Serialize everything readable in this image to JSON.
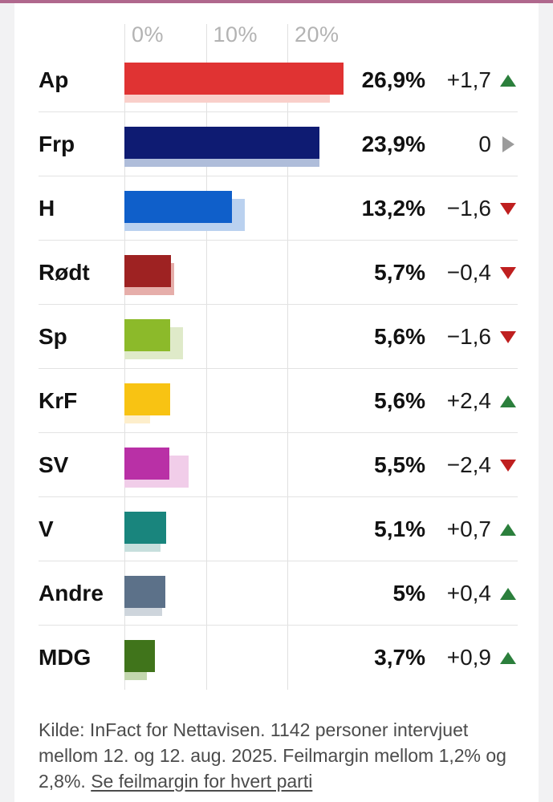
{
  "page": {
    "background_color": "#f2f2f3",
    "card_color": "#ffffff",
    "top_stripe_color": "#b0688d"
  },
  "colors": {
    "trend_up": "#2b7f3c",
    "trend_down": "#bf1f1f",
    "trend_flat": "#9b9b9b",
    "axis_text": "#b3b3b3",
    "gridline": "#e0e0e0",
    "separator": "#e3e3e3",
    "text": "#111111",
    "footer_text": "#4b4b4b"
  },
  "chart_data": {
    "type": "bar",
    "orientation": "horizontal",
    "unit": "%",
    "title": "",
    "axis": {
      "ticks": [
        {
          "label": "0%",
          "value": 0
        },
        {
          "label": "10%",
          "value": 10
        },
        {
          "label": "20%",
          "value": 20
        }
      ],
      "range": [
        0,
        28
      ],
      "grid": true
    },
    "rows": [
      {
        "party": "Ap",
        "value": 26.9,
        "value_label": "26,9%",
        "previous": 25.2,
        "change": 1.7,
        "change_label": "+1,7",
        "direction": "up",
        "color": "#e03333",
        "previous_color": "#f9cfca"
      },
      {
        "party": "Frp",
        "value": 23.9,
        "value_label": "23,9%",
        "previous": 23.9,
        "change": 0,
        "change_label": "0",
        "direction": "flat",
        "color": "#0e1b72",
        "previous_color": "#afbdda"
      },
      {
        "party": "H",
        "value": 13.2,
        "value_label": "13,2%",
        "previous": 14.8,
        "change": -1.6,
        "change_label": "−1,6",
        "direction": "down",
        "color": "#0f5fca",
        "previous_color": "#bad1ef"
      },
      {
        "party": "Rødt",
        "value": 5.7,
        "value_label": "5,7%",
        "previous": 6.1,
        "change": -0.4,
        "change_label": "−0,4",
        "direction": "down",
        "color": "#9e2222",
        "previous_color": "#e6aeaa"
      },
      {
        "party": "Sp",
        "value": 5.6,
        "value_label": "5,6%",
        "previous": 7.2,
        "change": -1.6,
        "change_label": "−1,6",
        "direction": "down",
        "color": "#8cba2a",
        "previous_color": "#dfeac9"
      },
      {
        "party": "KrF",
        "value": 5.6,
        "value_label": "5,6%",
        "previous": 3.2,
        "change": 2.4,
        "change_label": "+2,4",
        "direction": "up",
        "color": "#f8c313",
        "previous_color": "#fdeecb"
      },
      {
        "party": "SV",
        "value": 5.5,
        "value_label": "5,5%",
        "previous": 7.9,
        "change": -2.4,
        "change_label": "−2,4",
        "direction": "down",
        "color": "#b930a6",
        "previous_color": "#f1cde9"
      },
      {
        "party": "V",
        "value": 5.1,
        "value_label": "5,1%",
        "previous": 4.4,
        "change": 0.7,
        "change_label": "+0,7",
        "direction": "up",
        "color": "#19857d",
        "previous_color": "#c7dfdd"
      },
      {
        "party": "Andre",
        "value": 5.0,
        "value_label": "5%",
        "previous": 4.6,
        "change": 0.4,
        "change_label": "+0,4",
        "direction": "up",
        "color": "#5c7189",
        "previous_color": "#ced5dc"
      },
      {
        "party": "MDG",
        "value": 3.7,
        "value_label": "3,7%",
        "previous": 2.8,
        "change": 0.9,
        "change_label": "+0,9",
        "direction": "up",
        "color": "#40741b",
        "previous_color": "#c3d7ae"
      }
    ],
    "footer": {
      "source_text": "Kilde: InFact for Nettavisen. 1142 personer intervjuet mellom 12. og 12. aug. 2025. Feilmargin mellom 1,2% og 2,8%. ",
      "link_text": "Se feilmargin for hvert parti"
    }
  }
}
